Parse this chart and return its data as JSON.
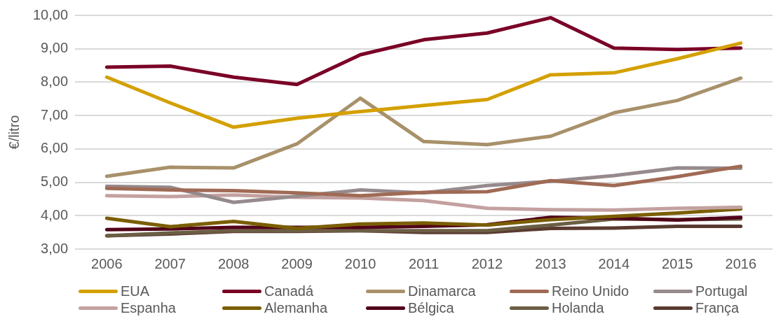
{
  "chart_data": {
    "type": "line",
    "ylabel": "€/litro",
    "categories": [
      "2006",
      "2007",
      "2008",
      "2009",
      "2010",
      "2011",
      "2012",
      "2013",
      "2014",
      "2015",
      "2016"
    ],
    "series": [
      {
        "name": "EUA",
        "color": "#d4a000",
        "values": [
          8.15,
          7.38,
          6.65,
          6.92,
          7.12,
          7.3,
          7.48,
          8.22,
          8.28,
          8.7,
          9.17
        ]
      },
      {
        "name": "Canadá",
        "color": "#7a0026",
        "values": [
          8.45,
          8.48,
          8.15,
          7.93,
          8.82,
          9.27,
          9.47,
          9.93,
          9.02,
          8.98,
          9.02
        ]
      },
      {
        "name": "Dinamarca",
        "color": "#a8916a",
        "values": [
          5.18,
          5.45,
          5.43,
          6.15,
          7.52,
          6.22,
          6.13,
          6.38,
          7.08,
          7.45,
          8.12
        ]
      },
      {
        "name": "Reino Unido",
        "color": "#a06a55",
        "values": [
          4.82,
          4.77,
          4.75,
          4.68,
          4.6,
          4.7,
          4.72,
          5.05,
          4.9,
          5.17,
          5.48
        ]
      },
      {
        "name": "Portugal",
        "color": "#968a8c",
        "values": [
          4.88,
          4.85,
          4.4,
          4.58,
          4.77,
          4.68,
          4.9,
          5.03,
          5.2,
          5.43,
          5.42
        ]
      },
      {
        "name": "Espanha",
        "color": "#c3a1a0",
        "values": [
          4.6,
          4.57,
          4.62,
          4.55,
          4.53,
          4.45,
          4.22,
          4.18,
          4.17,
          4.22,
          4.25
        ]
      },
      {
        "name": "Alemanha",
        "color": "#7a5e00",
        "values": [
          3.92,
          3.67,
          3.83,
          3.62,
          3.75,
          3.78,
          3.72,
          3.88,
          3.98,
          4.08,
          4.2
        ]
      },
      {
        "name": "Bélgica",
        "color": "#500018",
        "values": [
          3.58,
          3.6,
          3.65,
          3.65,
          3.65,
          3.68,
          3.73,
          3.95,
          3.93,
          3.87,
          3.95
        ]
      },
      {
        "name": "Holanda",
        "color": "#6b5e44",
        "values": [
          3.4,
          3.48,
          3.55,
          3.55,
          3.55,
          3.55,
          3.55,
          3.72,
          3.9,
          3.88,
          3.9
        ]
      },
      {
        "name": "França",
        "color": "#5a3a30",
        "values": [
          3.4,
          3.45,
          3.53,
          3.53,
          3.55,
          3.5,
          3.5,
          3.62,
          3.63,
          3.68,
          3.68
        ]
      }
    ],
    "ylim": [
      3,
      10
    ],
    "yticks": [
      {
        "value": 3,
        "label": "3,00"
      },
      {
        "value": 4,
        "label": "4,00"
      },
      {
        "value": 5,
        "label": "5,00"
      },
      {
        "value": 6,
        "label": "6,00"
      },
      {
        "value": 7,
        "label": "7,00"
      },
      {
        "value": 8,
        "label": "8,00"
      },
      {
        "value": 9,
        "label": "9,00"
      },
      {
        "value": 10,
        "label": "10,00"
      }
    ],
    "grid": "y",
    "legend": "bottom",
    "marker": "none",
    "line_style": "solid"
  }
}
